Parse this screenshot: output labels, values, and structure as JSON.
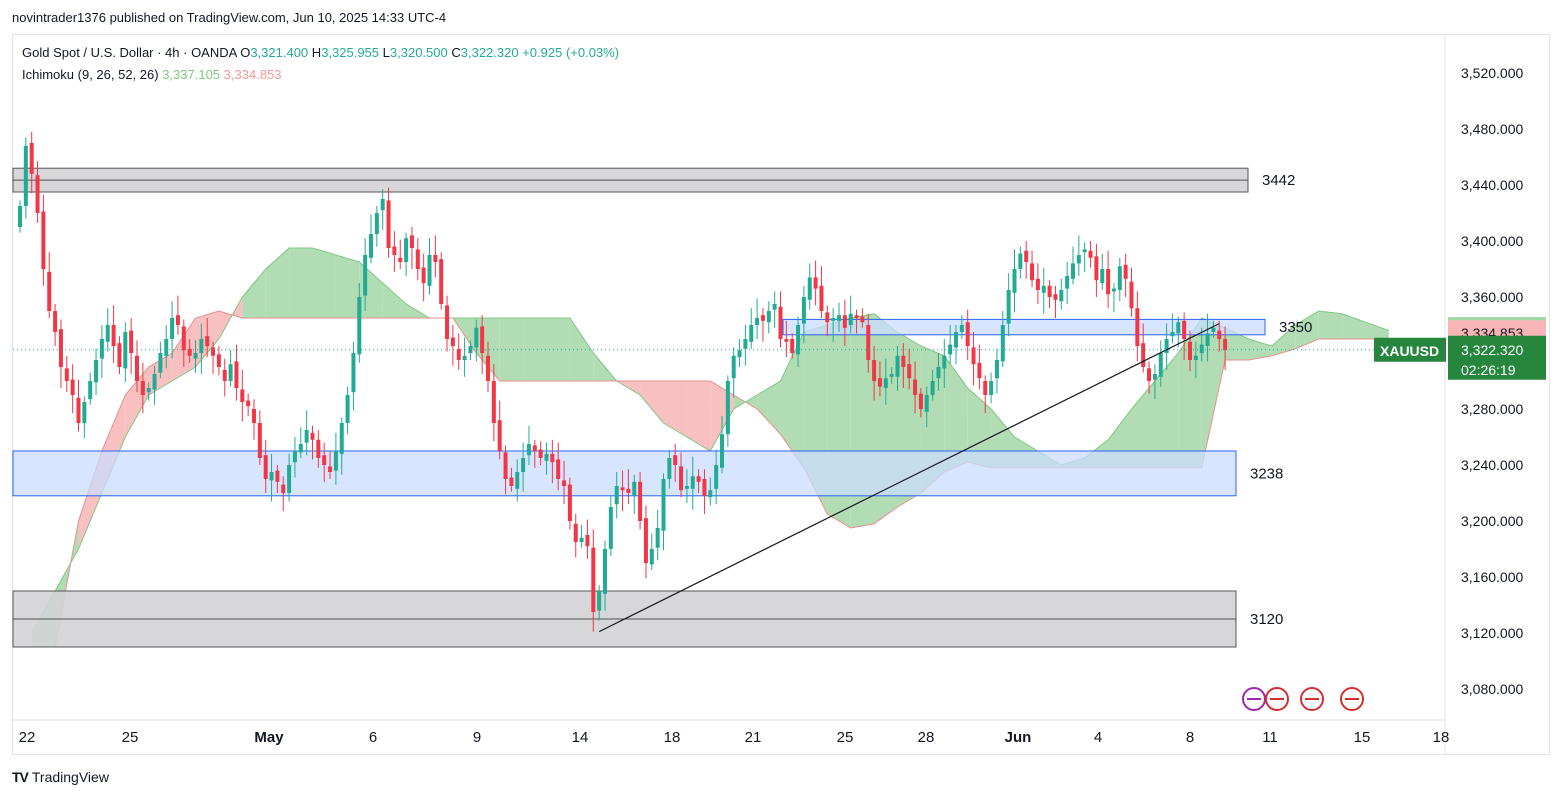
{
  "publisher": "novintrader1376 published on TradingView.com, Jun 10, 2025 14:33 UTC-4",
  "legend": {
    "symbol": "Gold Spot / U.S. Dollar · 4h · OANDA",
    "o_label": "O",
    "o": "3,321.400",
    "h_label": "H",
    "h": "3,325.955",
    "l_label": "L",
    "l": "3,320.500",
    "c_label": "C",
    "c": "3,322.320",
    "change": "+0.925 (+0.03%)",
    "indicator": "Ichimoku (9, 26, 52, 26)",
    "ind_v1": "3,337.105",
    "ind_v2": "3,334.853"
  },
  "brand": "TradingView",
  "colors": {
    "up": "#22ab94",
    "down": "#f23645",
    "kumo_bull": "#a5d6a7",
    "kumo_bear": "#f7b5b5",
    "zone_blue": "#c9dcff",
    "zone_gray": "#d3d3d5"
  },
  "chart_data": {
    "type": "candlestick",
    "symbol": "XAUUSD",
    "ylim": [
      3050,
      3550
    ],
    "yticks": [
      "3,520.000",
      "3,480.000",
      "3,440.000",
      "3,400.000",
      "3,360.000",
      "3,320.000",
      "3,280.000",
      "3,240.000",
      "3,200.000",
      "3,160.000",
      "3,120.000",
      "3,080.000"
    ],
    "xticks": [
      "22",
      "25",
      "May",
      "6",
      "9",
      "14",
      "18",
      "21",
      "25",
      "28",
      "Jun",
      "4",
      "8",
      "11",
      "15",
      "18"
    ],
    "price_badges": [
      {
        "value": "3,337.105",
        "kind": "kijun"
      },
      {
        "value": "3,334.853",
        "kind": "senkou"
      },
      {
        "value": "3,322.320",
        "kind": "last",
        "symbol": "XAUUSD",
        "countdown": "02:26:19"
      }
    ],
    "levels": [
      {
        "label": "3442",
        "low": 3435,
        "high": 3452,
        "kind": "gray"
      },
      {
        "label": "3350",
        "low": 3333,
        "high": 3344,
        "kind": "blue"
      },
      {
        "label": "3238",
        "low": 3218,
        "high": 3250,
        "kind": "blue"
      },
      {
        "label": "3120",
        "low": 3110,
        "high": 3150,
        "kind": "gray"
      }
    ],
    "trendline": [
      [
        3121,
        3121
      ],
      [
        3341,
        3341
      ]
    ],
    "closes": [
      3425,
      3468,
      3448,
      3420,
      3380,
      3350,
      3335,
      3310,
      3300,
      3290,
      3270,
      3285,
      3300,
      3315,
      3330,
      3340,
      3325,
      3310,
      3335,
      3320,
      3300,
      3290,
      3295,
      3305,
      3320,
      3330,
      3345,
      3340,
      3322,
      3318,
      3320,
      3330,
      3325,
      3318,
      3310,
      3300,
      3312,
      3295,
      3285,
      3282,
      3270,
      3245,
      3230,
      3235,
      3228,
      3220,
      3240,
      3250,
      3255,
      3265,
      3258,
      3245,
      3240,
      3235,
      3250,
      3270,
      3290,
      3320,
      3360,
      3390,
      3405,
      3420,
      3430,
      3395,
      3390,
      3385,
      3402,
      3395,
      3380,
      3370,
      3390,
      3385,
      3355,
      3330,
      3325,
      3315,
      3318,
      3325,
      3338,
      3320,
      3300,
      3270,
      3250,
      3230,
      3225,
      3235,
      3245,
      3255,
      3250,
      3245,
      3248,
      3242,
      3230,
      3225,
      3200,
      3185,
      3188,
      3182,
      3135,
      3150,
      3180,
      3210,
      3225,
      3222,
      3220,
      3228,
      3200,
      3170,
      3180,
      3195,
      3230,
      3245,
      3240,
      3222,
      3225,
      3232,
      3228,
      3218,
      3222,
      3240,
      3262,
      3300,
      3318,
      3322,
      3330,
      3340,
      3345,
      3343,
      3350,
      3355,
      3330,
      3328,
      3320,
      3340,
      3360,
      3374,
      3366,
      3350,
      3342,
      3345,
      3347,
      3338,
      3348,
      3345,
      3342,
      3315,
      3300,
      3296,
      3302,
      3305,
      3318,
      3310,
      3302,
      3290,
      3280,
      3290,
      3300,
      3310,
      3318,
      3326,
      3335,
      3340,
      3325,
      3312,
      3302,
      3290,
      3300,
      3315,
      3340,
      3365,
      3380,
      3391,
      3385,
      3372,
      3365,
      3368,
      3360,
      3358,
      3365,
      3375,
      3384,
      3390,
      3394,
      3388,
      3372,
      3380,
      3362,
      3366,
      3382,
      3373,
      3352,
      3325,
      3310,
      3300,
      3305,
      3320,
      3330,
      3335,
      3342,
      3330,
      3315,
      3318,
      3326,
      3334,
      3338,
      3330,
      3322
    ],
    "kumo": {
      "x_from": 2,
      "x_step": 4,
      "senkou_a": [
        3120,
        3150,
        3180,
        3220,
        3260,
        3290,
        3300,
        3310,
        3330,
        3360,
        3380,
        3395,
        3395,
        3390,
        3385,
        3370,
        3355,
        3345,
        3345,
        3345,
        3345,
        3345,
        3345,
        3345,
        3320,
        3300,
        3290,
        3270,
        3260,
        3250,
        3280,
        3290,
        3300,
        3335,
        3340,
        3345,
        3348,
        3335,
        3325,
        3318,
        3295,
        3280,
        3260,
        3250,
        3240,
        3245,
        3258,
        3280,
        3300,
        3320,
        3345,
        3338,
        3330,
        3325,
        3340,
        3350,
        3348,
        3342,
        3336
      ],
      "senkou_b": [
        3110,
        3110,
        3200,
        3250,
        3290,
        3310,
        3320,
        3345,
        3350,
        3345,
        3345,
        3345,
        3345,
        3345,
        3345,
        3345,
        3345,
        3345,
        3345,
        3320,
        3300,
        3300,
        3300,
        3300,
        3300,
        3300,
        3300,
        3300,
        3300,
        3300,
        3290,
        3280,
        3262,
        3238,
        3205,
        3195,
        3198,
        3210,
        3220,
        3235,
        3242,
        3238,
        3238,
        3238,
        3238,
        3238,
        3238,
        3238,
        3238,
        3238,
        3238,
        3315,
        3315,
        3318,
        3323,
        3330,
        3330,
        3330,
        3330
      ]
    }
  }
}
